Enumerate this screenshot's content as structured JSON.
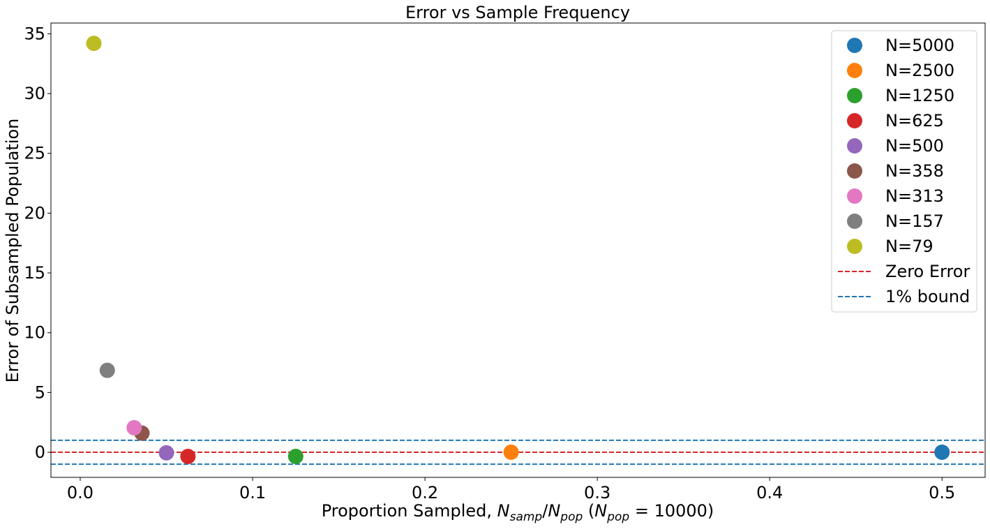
{
  "chart_data": {
    "type": "scatter",
    "title": "Error vs Sample Frequency",
    "xlabel": {
      "prefix": "Proportion Sampled, ",
      "num": "N",
      "num_sub": "samp",
      "den": "N",
      "den_sub": "pop",
      "paren_open": " (",
      "pop": "N",
      "pop_sub": "pop",
      "eq": " = 10000",
      "paren_close": ")"
    },
    "ylabel": "Error of Subsampled Population",
    "xlim": [
      -0.017,
      0.525
    ],
    "ylim": [
      -2.1,
      35.9
    ],
    "xticks": [
      0.0,
      0.1,
      0.2,
      0.3,
      0.4,
      0.5
    ],
    "xtick_labels": [
      "0.0",
      "0.1",
      "0.2",
      "0.3",
      "0.4",
      "0.5"
    ],
    "yticks": [
      0,
      5,
      10,
      15,
      20,
      25,
      30,
      35
    ],
    "ytick_labels": [
      "0",
      "5",
      "10",
      "15",
      "20",
      "25",
      "30",
      "35"
    ],
    "series": [
      {
        "name": "N=5000",
        "color": "#1f77b4",
        "x": 0.5,
        "y": 0.0
      },
      {
        "name": "N=2500",
        "color": "#ff7f0e",
        "x": 0.25,
        "y": 0.0
      },
      {
        "name": "N=1250",
        "color": "#2ca02c",
        "x": 0.125,
        "y": -0.35
      },
      {
        "name": "N=625",
        "color": "#d62728",
        "x": 0.0625,
        "y": -0.35
      },
      {
        "name": "N=500",
        "color": "#9467bd",
        "x": 0.05,
        "y": -0.05
      },
      {
        "name": "N=358",
        "color": "#8c564b",
        "x": 0.0358,
        "y": 1.6
      },
      {
        "name": "N=313",
        "color": "#e377c2",
        "x": 0.0313,
        "y": 2.05
      },
      {
        "name": "N=157",
        "color": "#7f7f7f",
        "x": 0.0157,
        "y": 6.85
      },
      {
        "name": "N=79",
        "color": "#bcbd22",
        "x": 0.0079,
        "y": 34.2
      }
    ],
    "hlines": [
      {
        "name": "Zero Error",
        "color": "#d62728",
        "y": [
          0
        ]
      },
      {
        "name": "1% bound",
        "color": "#1f77b4",
        "y": [
          1,
          -1
        ]
      }
    ],
    "legend_position": "upper right",
    "grid": false
  }
}
